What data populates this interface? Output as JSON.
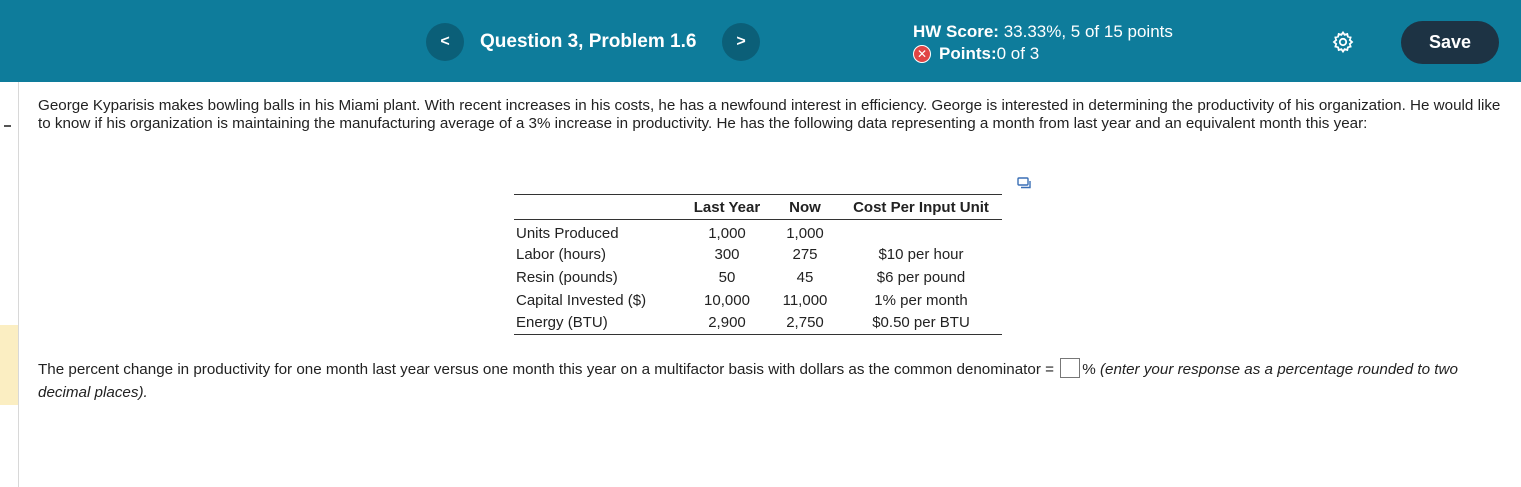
{
  "header": {
    "prev_glyph": "<",
    "next_glyph": ">",
    "question_title": "Question 3, Problem 1.6",
    "hw_score_label": "HW Score:",
    "hw_score_value": " 33.33%, 5 of 15 points",
    "points_label": "Points:",
    "points_value": " 0 of 3",
    "save_label": "Save",
    "status_icon": "x-circle-icon",
    "settings_icon": "gear-icon"
  },
  "problem": {
    "text": "George Kyparisis makes bowling balls in his Miami plant. With recent increases in his costs, he has a newfound interest in efficiency. George is interested in determining the productivity of his organization. He would like to know if his organization is maintaining the manufacturing average of a 3% increase in productivity. He has the following data representing a month from last year and an equivalent month this year:"
  },
  "table": {
    "headers": [
      "",
      "Last Year",
      "Now",
      "Cost Per Input Unit"
    ],
    "rows": [
      {
        "label": "Units Produced",
        "last_year": "1,000",
        "now": "1,000",
        "cost": ""
      },
      {
        "label": "Labor (hours)",
        "last_year": "300",
        "now": "275",
        "cost": "$10 per hour"
      },
      {
        "label": "Resin (pounds)",
        "last_year": "50",
        "now": "45",
        "cost": "$6 per pound"
      },
      {
        "label": "Capital Invested ($)",
        "last_year": "10,000",
        "now": "11,000",
        "cost": "1% per month"
      },
      {
        "label": "Energy (BTU)",
        "last_year": "2,900",
        "now": "2,750",
        "cost": "$0.50 per BTU"
      }
    ]
  },
  "answer": {
    "prompt": "The percent change in productivity for one month last year versus one month this year on a multifactor basis with dollars as the common denominator = ",
    "suffix": "%",
    "hint": " (enter your response as a percentage rounded to two decimal places).",
    "value": ""
  },
  "colors": {
    "header_bg": "#0e7c9b",
    "save_bg": "#1d3344",
    "error_red": "#e04545"
  }
}
